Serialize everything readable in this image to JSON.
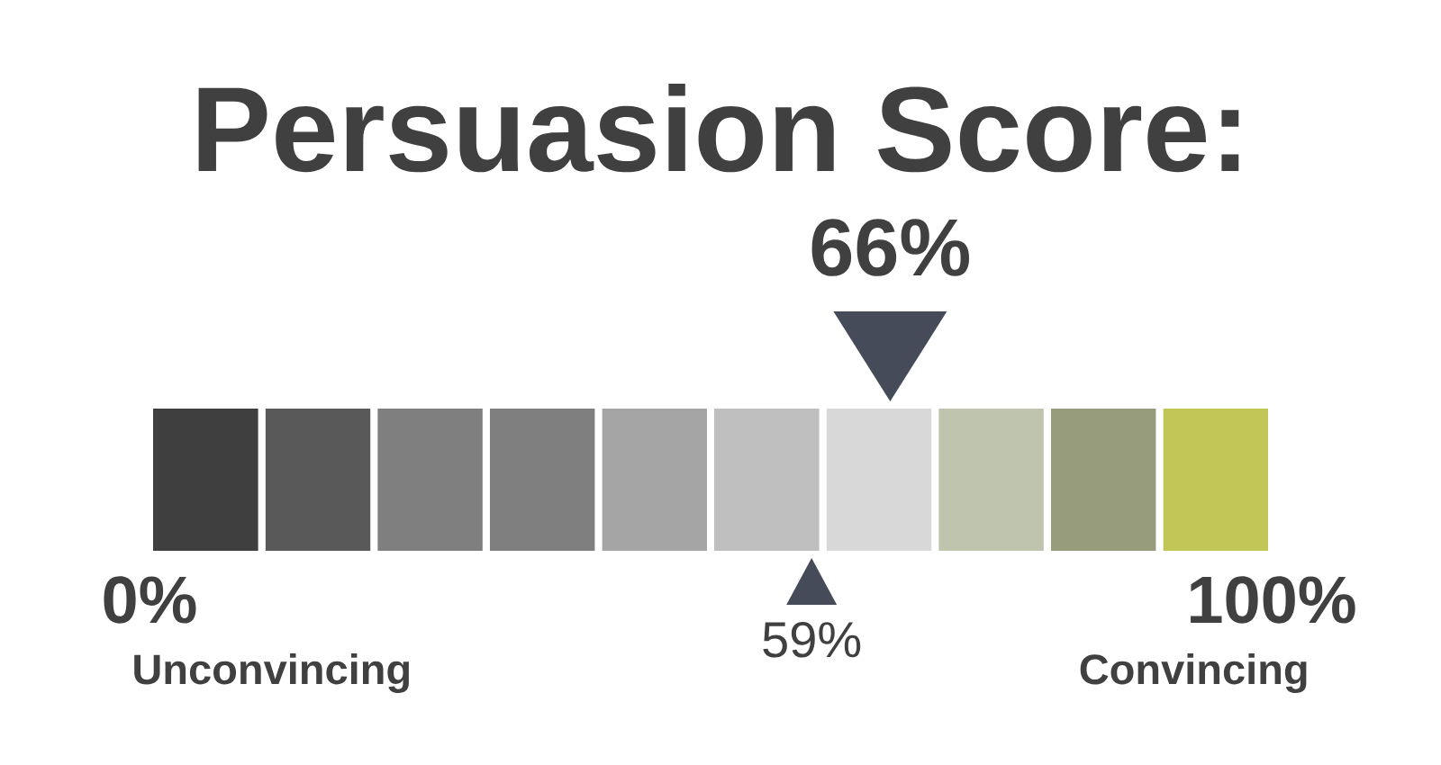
{
  "chart_data": {
    "type": "bar",
    "orientation": "horizontal",
    "stacked": true,
    "title": "Persuasion Score:",
    "categories": [
      null
    ],
    "series": [
      {
        "color": "#3f3f3f",
        "values": [
          10
        ]
      },
      {
        "color": "#595959",
        "values": [
          10
        ]
      },
      {
        "color": "#7f7f7f",
        "values": [
          10
        ]
      },
      {
        "color": "#7f7f7f",
        "values": [
          10
        ]
      },
      {
        "color": "#a5a5a5",
        "values": [
          10
        ]
      },
      {
        "color": "#bfbfbf",
        "values": [
          10
        ]
      },
      {
        "color": "#d8d8d8",
        "values": [
          10
        ]
      },
      {
        "color": "#bfc4af",
        "values": [
          10
        ]
      },
      {
        "color": "#979c7c",
        "values": [
          10
        ]
      },
      {
        "color": "#c1c656",
        "values": [
          10
        ]
      }
    ],
    "xlim": [
      0,
      100
    ],
    "xticks": [
      {
        "value": 0,
        "label": "0%"
      },
      {
        "value": 100,
        "label": "100%"
      }
    ],
    "tick_labels": "x",
    "annotations": [
      "66%",
      "59%",
      "Unconvincing",
      "Convincing"
    ]
  }
}
